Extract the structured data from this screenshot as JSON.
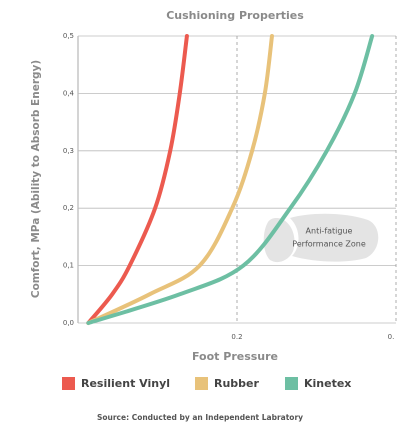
{
  "chart_data": {
    "type": "line",
    "title": "Cushioning Properties",
    "x_label": "Foot Pressure",
    "y_label": "Comfort, MPa (Ability to Absorb Energy)",
    "annotation": [
      "Anti-fatigue",
      "Performance Zone"
    ],
    "source": "Source: Conducted by an Independent Labratory",
    "xlim": [
      0,
      0.4
    ],
    "ylim": [
      0,
      0.5
    ],
    "xticks": [
      0.2,
      {
        "value": 0.4,
        "label": "0."
      }
    ],
    "yticks": [
      {
        "value": 0,
        "label": "0,0"
      },
      {
        "value": 0.1,
        "label": "0,1"
      },
      {
        "value": 0.2,
        "label": "0,2"
      },
      {
        "value": 0.3,
        "label": "0,3"
      },
      {
        "value": 0.4,
        "label": "0,4"
      },
      {
        "value": 0.5,
        "label": "0,5"
      }
    ],
    "grid": true,
    "series": [
      {
        "name": "Resilient Vinyl",
        "color": "#ec5a4f",
        "x": [
          0.013,
          0.043,
          0.065,
          0.097,
          0.116,
          0.128,
          0.137
        ],
        "values": [
          0,
          0.05,
          0.1,
          0.2,
          0.3,
          0.4,
          0.5
        ]
      },
      {
        "name": "Rubber",
        "color": "#e8c27a",
        "x": [
          0.013,
          0.09,
          0.153,
          0.194,
          0.219,
          0.235,
          0.244
        ],
        "values": [
          0,
          0.05,
          0.1,
          0.2,
          0.3,
          0.4,
          0.5
        ]
      },
      {
        "name": "Kinetex",
        "color": "#6dbfa3",
        "x": [
          0.013,
          0.128,
          0.208,
          0.267,
          0.313,
          0.348,
          0.37
        ],
        "values": [
          0,
          0.05,
          0.1,
          0.2,
          0.3,
          0.4,
          0.5
        ]
      }
    ]
  }
}
